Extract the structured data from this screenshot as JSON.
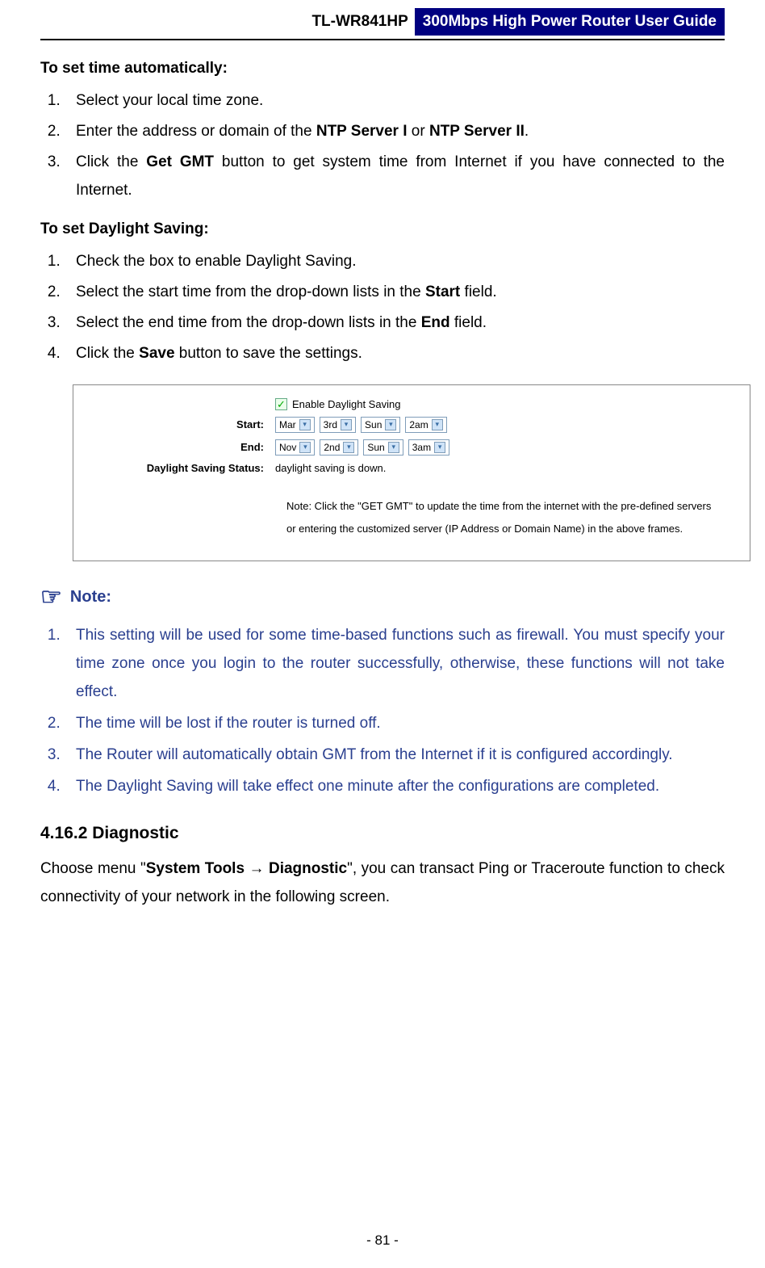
{
  "header": {
    "model": "TL-WR841HP",
    "title": "300Mbps High Power Router User Guide"
  },
  "sec_auto": {
    "title": "To set time automatically:",
    "steps": [
      {
        "pre": "Select your local time zone."
      },
      {
        "pre": "Enter the address or domain of the ",
        "b1": "NTP Server I",
        "mid": " or ",
        "b2": "NTP Server II",
        "post": "."
      },
      {
        "pre": "Click the ",
        "b1": "Get GMT",
        "post": " button to get system time from Internet if you have connected to the Internet."
      }
    ]
  },
  "sec_dst": {
    "title": "To set Daylight Saving:",
    "steps": [
      {
        "pre": "Check the box to enable Daylight Saving."
      },
      {
        "pre": "Select the start time from the drop-down lists in the ",
        "b1": "Start",
        "post": " field."
      },
      {
        "pre": "Select the end time from the drop-down lists in the ",
        "b1": "End",
        "post": " field."
      },
      {
        "pre": "Click the ",
        "b1": "Save",
        "post": " button to save the settings."
      }
    ]
  },
  "figure": {
    "enable_label": "Enable Daylight Saving",
    "row_start_label": "Start:",
    "row_end_label": "End:",
    "row_status_label": "Daylight Saving Status:",
    "status_text": "daylight saving is down.",
    "start_vals": [
      "Mar",
      "3rd",
      "Sun",
      "2am"
    ],
    "end_vals": [
      "Nov",
      "2nd",
      "Sun",
      "3am"
    ],
    "note_line1": "Note: Click the \"GET GMT\" to update the time from the internet with the pre-defined servers",
    "note_line2": "or entering the customized server (IP Address or Domain Name) in the above frames."
  },
  "note_block": {
    "heading": "Note:",
    "items": [
      "This setting will be used for some time-based functions such as firewall. You must specify your time zone once you login to the router successfully, otherwise, these functions will not take effect.",
      "The time will be lost if the router is turned off.",
      "The Router will automatically obtain GMT from the Internet if it is configured accordingly.",
      "The Daylight Saving will take effect one minute after the configurations are completed."
    ]
  },
  "diagnostic": {
    "heading": "4.16.2 Diagnostic",
    "para_pre": "Choose menu \"",
    "para_b1": "System Tools",
    "para_arrow": " → ",
    "para_b2": "Diagnostic",
    "para_post": "\", you can transact Ping or Traceroute function to check connectivity of your network in the following screen."
  },
  "footer": "- 81 -",
  "colors": {
    "header_bg": "#000080",
    "note_color": "#2a3f8f"
  }
}
